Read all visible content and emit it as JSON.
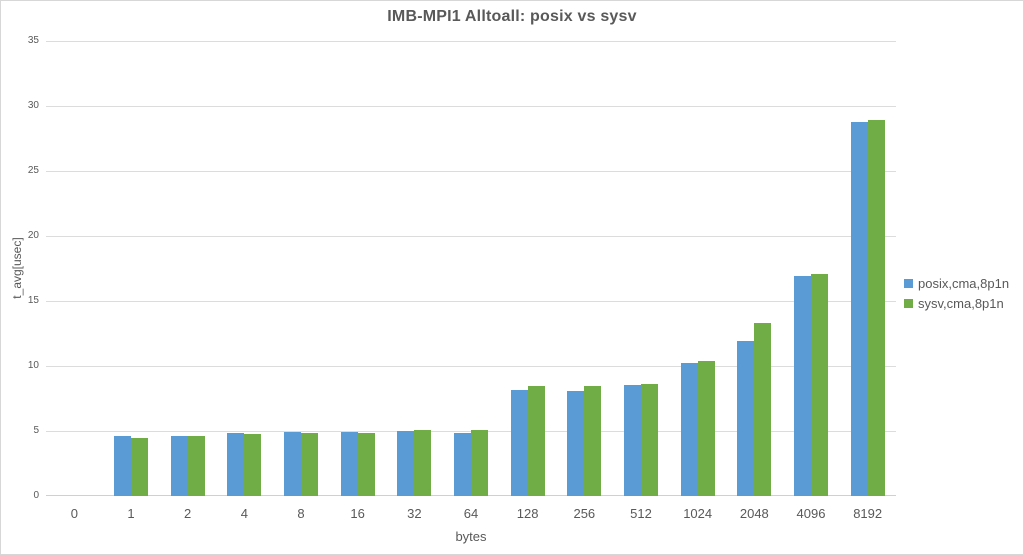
{
  "chart_data": {
    "type": "bar",
    "title": "IMB-MPI1 Alltoall: posix vs sysv",
    "xlabel": "bytes",
    "ylabel": "t_avg[usec]",
    "ylim": [
      0,
      35
    ],
    "ytick_step": 5,
    "yticks": [
      "0",
      "5",
      "10",
      "15",
      "20",
      "25",
      "30",
      "35"
    ],
    "grid": true,
    "legend_position": "right",
    "categories": [
      "0",
      "1",
      "2",
      "4",
      "8",
      "16",
      "32",
      "64",
      "128",
      "256",
      "512",
      "1024",
      "2048",
      "4096",
      "8192"
    ],
    "series": [
      {
        "name": "posix,cma,8p1n",
        "color": "#5B9BD5",
        "values": [
          null,
          4.6,
          4.65,
          4.85,
          4.9,
          4.9,
          5.0,
          4.85,
          8.15,
          8.1,
          8.55,
          10.2,
          11.9,
          16.9,
          28.8
        ]
      },
      {
        "name": "sysv,cma,8p1n",
        "color": "#70AD47",
        "values": [
          null,
          4.5,
          4.6,
          4.8,
          4.85,
          4.85,
          5.05,
          5.1,
          8.45,
          8.45,
          8.65,
          10.35,
          13.3,
          17.1,
          28.9
        ]
      }
    ],
    "colors": {
      "text": "#595959",
      "gridline": "#DCDCDC",
      "border": "#D7D7D7"
    }
  }
}
